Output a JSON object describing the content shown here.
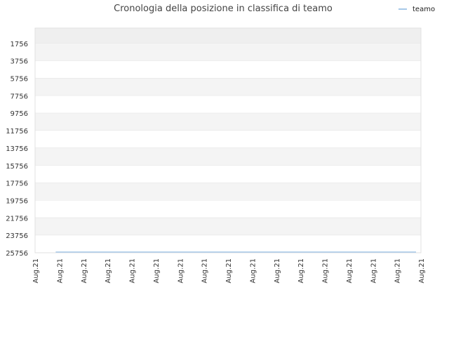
{
  "chart_data": {
    "type": "line",
    "title": "Cronologia della posizione in classifica di teamo",
    "xlabel": "",
    "ylabel": "",
    "y_axis": {
      "reversed": true,
      "ticks": [
        1756,
        3756,
        5756,
        7756,
        9756,
        11756,
        13756,
        15756,
        17756,
        19756,
        21756,
        23756,
        25756
      ],
      "range": [
        25756,
        0
      ]
    },
    "x_axis": {
      "tick_labels": [
        "Aug.21",
        "Aug.21",
        "Aug.21",
        "Aug.21",
        "Aug.21",
        "Aug.21",
        "Aug.21",
        "Aug.21",
        "Aug.21",
        "Aug.21",
        "Aug.21",
        "Aug.21",
        "Aug.21",
        "Aug.21",
        "Aug.21",
        "Aug.21",
        "Aug.21"
      ]
    },
    "grid": true,
    "legend_position": "top-right",
    "series": [
      {
        "name": "teamo",
        "color": "#a6c8e8",
        "x_range_ticks": [
          1,
          16
        ],
        "values": [
          25756,
          25756
        ]
      }
    ]
  }
}
